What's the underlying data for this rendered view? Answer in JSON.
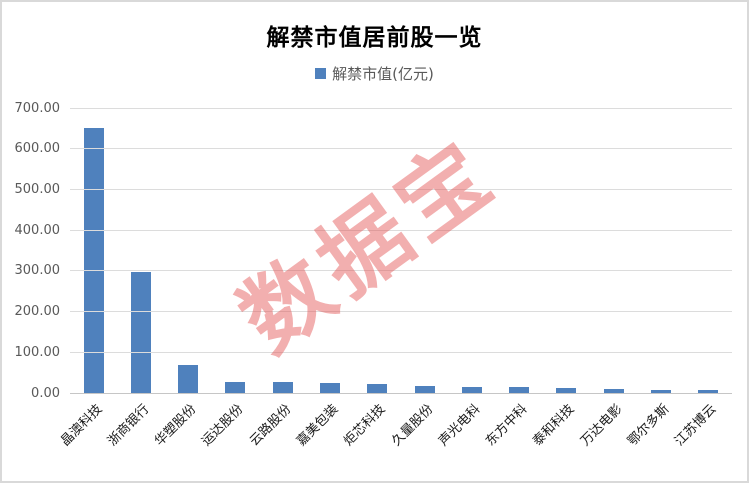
{
  "title": "解禁市值居前股一览",
  "legend": {
    "label": "解禁市值(亿元)",
    "marker_color": "#4f81bd"
  },
  "watermark": {
    "text": "数据宝",
    "color": "rgba(226,78,78,0.45)"
  },
  "colors": {
    "bar": "#4f81bd",
    "gridline": "#dcdcdc",
    "axis_line": "#c6c6c6",
    "ytick_text": "#595959",
    "xtick_text": "#1a1a1a",
    "frame_border": "#d9d9d9"
  },
  "chart_data": {
    "type": "bar",
    "title": "解禁市值居前股一览",
    "legend_entries": [
      "解禁市值(亿元)"
    ],
    "legend_position": "top",
    "categories": [
      "晶澳科技",
      "浙商银行",
      "华塑股份",
      "运达股份",
      "云路股份",
      "嘉美包装",
      "炬芯科技",
      "久量股份",
      "声光电科",
      "东方中科",
      "泰和科技",
      "万达电影",
      "鄂尔多斯",
      "江苏博云"
    ],
    "values": [
      650,
      298,
      70,
      28,
      27,
      24,
      21,
      17,
      16,
      15,
      13,
      9,
      8,
      7
    ],
    "xlabel": "",
    "ylabel": "",
    "ylim": [
      0,
      700
    ],
    "ytick_step": 100,
    "yticks": [
      "0.00",
      "100.00",
      "200.00",
      "300.00",
      "400.00",
      "500.00",
      "600.00",
      "700.00"
    ],
    "grid": true
  }
}
